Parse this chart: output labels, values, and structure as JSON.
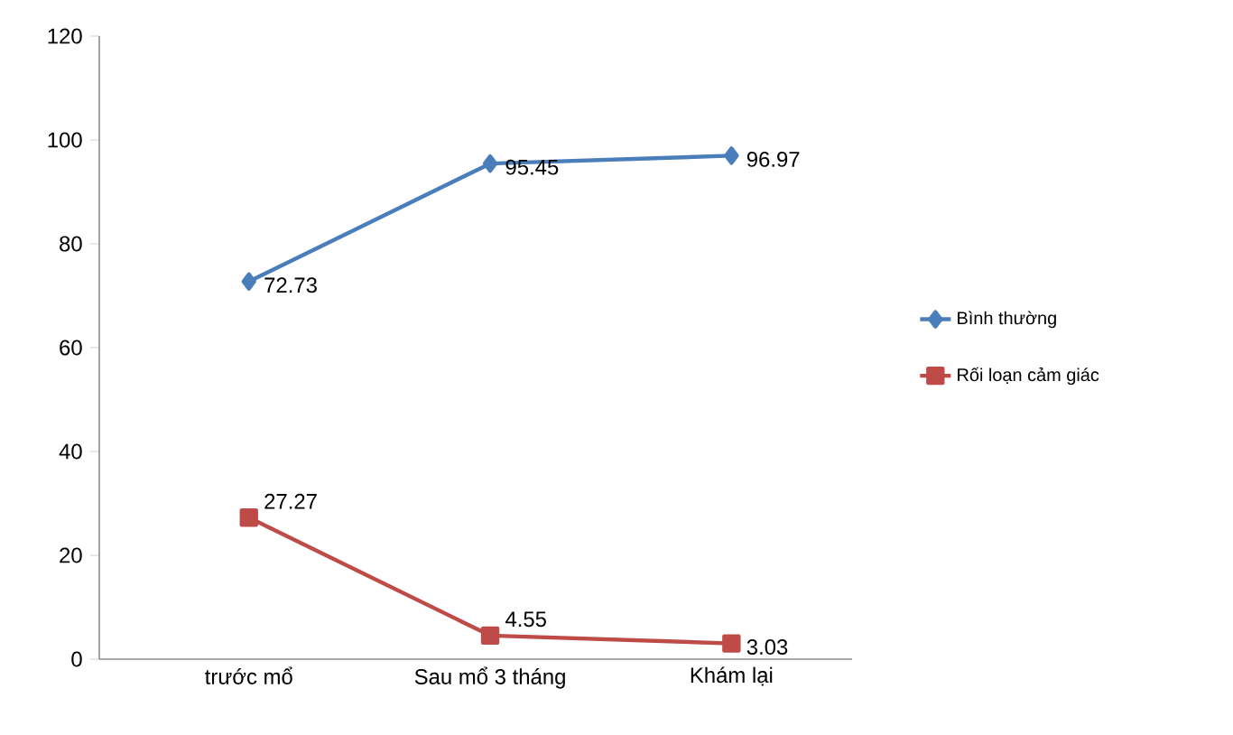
{
  "chart_data": {
    "type": "line",
    "categories": [
      "trước mổ",
      "Sau mổ 3 tháng",
      "Khám lại"
    ],
    "series": [
      {
        "name": "Bình thường",
        "color": "#4a7ebb",
        "marker": "diamond",
        "values": [
          72.73,
          95.45,
          96.97
        ]
      },
      {
        "name": "Rối loạn cảm giác",
        "color": "#be4b48",
        "marker": "square",
        "values": [
          27.27,
          4.55,
          3.03
        ]
      }
    ],
    "ylim": [
      0,
      120
    ],
    "yticks": [
      0,
      20,
      40,
      60,
      80,
      100,
      120
    ],
    "data_labels": true,
    "legend": "right",
    "grid": false
  }
}
